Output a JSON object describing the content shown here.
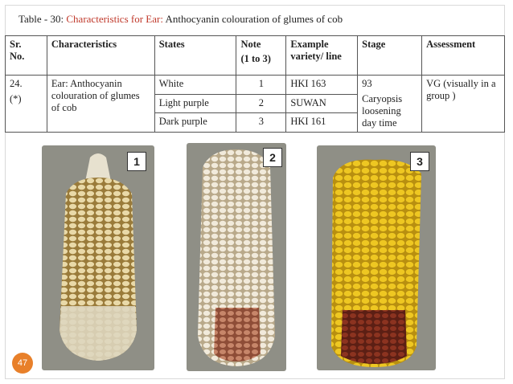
{
  "title": {
    "prefix": "Table - 30: ",
    "highlight": "Characteristics for Ear:",
    "rest": " Anthocyanin colouration of glumes of cob"
  },
  "table": {
    "headers": {
      "sr_line1": "Sr.",
      "sr_line2": "No.",
      "characteristics": "Characteristics",
      "states": "States",
      "note_line1": "Note",
      "note_line2": "(1 to 3)",
      "example_line1": "Example",
      "example_line2": "variety/ line",
      "stage": "Stage",
      "assessment": "Assessment"
    },
    "sr_no_line1": "24.",
    "sr_no_line2": "(*)",
    "characteristic": "Ear: Anthocyanin colouration of glumes of cob",
    "rows": [
      {
        "state": "White",
        "note": "1",
        "example": "HKI 163"
      },
      {
        "state": "Light purple",
        "note": "2",
        "example": "SUWAN"
      },
      {
        "state": "Dark purple",
        "note": "3",
        "example": "HKI 161"
      }
    ],
    "stage_line1": "93",
    "stage_line2": "Caryopsis loosening day time",
    "assessment": "VG (visually in a group )"
  },
  "images": [
    {
      "label": "1",
      "icon": "corn-cob-white-glumes"
    },
    {
      "label": "2",
      "icon": "corn-cob-light-purple-glumes"
    },
    {
      "label": "3",
      "icon": "corn-cob-dark-purple-glumes"
    }
  ],
  "page_number": "47",
  "colors": {
    "title_highlight": "#c0392b",
    "page_badge": "#e8802a"
  }
}
